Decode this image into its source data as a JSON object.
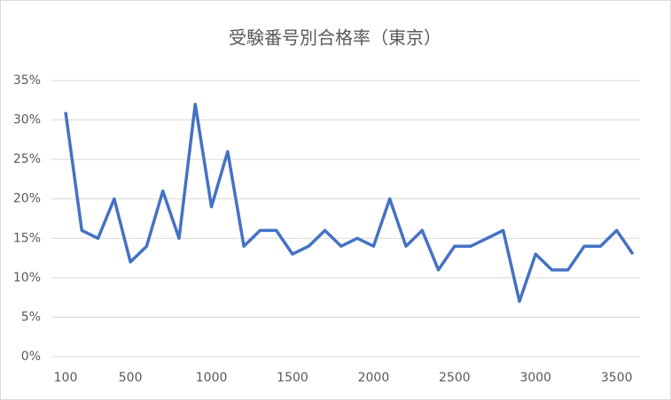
{
  "chart_data": {
    "type": "line",
    "title": "受験番号別合格率（東京）",
    "x": [
      100,
      200,
      300,
      400,
      500,
      600,
      700,
      800,
      900,
      1000,
      1100,
      1200,
      1300,
      1400,
      1500,
      1600,
      1700,
      1800,
      1900,
      2000,
      2100,
      2200,
      2300,
      2400,
      2500,
      2600,
      2700,
      2800,
      2900,
      3000,
      3100,
      3200,
      3300,
      3400,
      3500,
      3600
    ],
    "series": [
      {
        "color": "#4472c4",
        "values": [
          31,
          16,
          15,
          20,
          12,
          14,
          21,
          15,
          32,
          19,
          26,
          14,
          16,
          16,
          13,
          14,
          16,
          14,
          15,
          14,
          20,
          14,
          16,
          11,
          14,
          14,
          15,
          16,
          7,
          13,
          11,
          11,
          14,
          14,
          16,
          13
        ]
      }
    ],
    "xlim": [
      100,
      3600
    ],
    "xticks": [
      100,
      500,
      1000,
      1500,
      2000,
      2500,
      3000,
      3500
    ],
    "ylim": [
      0,
      35
    ],
    "yticks": [
      {
        "value": 0,
        "label": "0%"
      },
      {
        "value": 5,
        "label": "5%"
      },
      {
        "value": 10,
        "label": "10%"
      },
      {
        "value": 15,
        "label": "15%"
      },
      {
        "value": 20,
        "label": "20%"
      },
      {
        "value": 25,
        "label": "25%"
      },
      {
        "value": 30,
        "label": "30%"
      },
      {
        "value": 35,
        "label": "35%"
      }
    ],
    "grid": true
  }
}
